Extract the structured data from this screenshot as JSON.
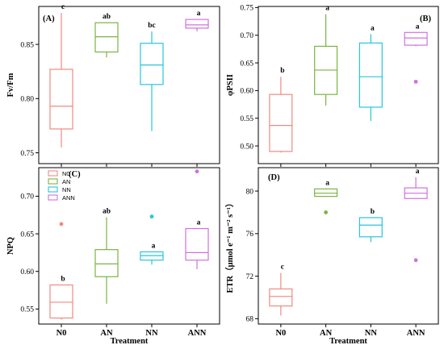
{
  "series_colors": {
    "N0": "#f08a80",
    "AN": "#7cb342",
    "NN": "#26c6da",
    "ANN": "#d070e0"
  },
  "chart_data": [
    {
      "type": "box",
      "panel_label": "(A)",
      "ylabel": "Fv/Fm",
      "xlabel": "",
      "categories": [
        "N0",
        "AN",
        "NN",
        "ANN"
      ],
      "show_xtick_labels": false,
      "ylim": [
        0.74,
        0.885
      ],
      "yticks": [
        "0.75",
        "0.80",
        "0.85"
      ],
      "ytick_values": [
        0.75,
        0.8,
        0.85
      ],
      "boxes": [
        {
          "category": "N0",
          "whisker_low": 0.755,
          "q1": 0.772,
          "median": 0.793,
          "q3": 0.827,
          "whisker_high": 0.879,
          "outliers": [],
          "sig": "c"
        },
        {
          "category": "AN",
          "whisker_low": 0.838,
          "q1": 0.843,
          "median": 0.857,
          "q3": 0.87,
          "whisker_high": 0.87,
          "outliers": [],
          "sig": "ab"
        },
        {
          "category": "NN",
          "whisker_low": 0.77,
          "q1": 0.813,
          "median": 0.831,
          "q3": 0.851,
          "whisker_high": 0.862,
          "outliers": [],
          "sig": "bc"
        },
        {
          "category": "ANN",
          "whisker_low": 0.862,
          "q1": 0.865,
          "median": 0.868,
          "q3": 0.873,
          "whisker_high": 0.873,
          "outliers": [],
          "sig": "a"
        }
      ]
    },
    {
      "type": "box",
      "panel_label": "(B)",
      "ylabel": "φPSII",
      "xlabel": "",
      "categories": [
        "N0",
        "AN",
        "NN",
        "ANN"
      ],
      "show_xtick_labels": false,
      "ylim": [
        0.468,
        0.752
      ],
      "yticks": [
        "0.50",
        "0.55",
        "0.60",
        "0.65",
        "0.70",
        "0.75"
      ],
      "ytick_values": [
        0.5,
        0.55,
        0.6,
        0.65,
        0.7,
        0.75
      ],
      "boxes": [
        {
          "category": "N0",
          "whisker_low": 0.488,
          "q1": 0.49,
          "median": 0.537,
          "q3": 0.593,
          "whisker_high": 0.625,
          "outliers": [],
          "sig": "b"
        },
        {
          "category": "AN",
          "whisker_low": 0.573,
          "q1": 0.593,
          "median": 0.637,
          "q3": 0.68,
          "whisker_high": 0.738,
          "outliers": [],
          "sig": "a"
        },
        {
          "category": "NN",
          "whisker_low": 0.545,
          "q1": 0.57,
          "median": 0.625,
          "q3": 0.686,
          "whisker_high": 0.702,
          "outliers": [],
          "sig": "a"
        },
        {
          "category": "ANN",
          "whisker_low": 0.68,
          "q1": 0.682,
          "median": 0.695,
          "q3": 0.705,
          "whisker_high": 0.705,
          "outliers": [
            0.616
          ],
          "sig": "a"
        }
      ]
    },
    {
      "type": "box",
      "panel_label": "(C)",
      "ylabel": "NPQ",
      "xlabel": "Treatment",
      "categories": [
        "N0",
        "AN",
        "NN",
        "ANN"
      ],
      "show_xtick_labels": true,
      "ylim": [
        0.53,
        0.738
      ],
      "yticks": [
        "0.55",
        "0.60",
        "0.65",
        "0.70"
      ],
      "ytick_values": [
        0.55,
        0.6,
        0.65,
        0.7
      ],
      "legend": {
        "entries": [
          "N0",
          "AN",
          "NN",
          "ANN"
        ],
        "placement": "top-left"
      },
      "boxes": [
        {
          "category": "N0",
          "whisker_low": 0.536,
          "q1": 0.538,
          "median": 0.559,
          "q3": 0.582,
          "whisker_high": 0.582,
          "outliers": [
            0.663
          ],
          "sig": "b"
        },
        {
          "category": "AN",
          "whisker_low": 0.557,
          "q1": 0.593,
          "median": 0.61,
          "q3": 0.629,
          "whisker_high": 0.672,
          "outliers": [],
          "sig": "ab"
        },
        {
          "category": "NN",
          "whisker_low": 0.609,
          "q1": 0.615,
          "median": 0.621,
          "q3": 0.626,
          "whisker_high": 0.626,
          "outliers": [
            0.673
          ],
          "sig": "a"
        },
        {
          "category": "ANN",
          "whisker_low": 0.603,
          "q1": 0.615,
          "median": 0.625,
          "q3": 0.657,
          "whisker_high": 0.657,
          "outliers": [
            0.733
          ],
          "sig": "a"
        }
      ]
    },
    {
      "type": "box",
      "panel_label": "(D)",
      "ylabel": "ETR（μmol e⁻¹ m⁻² s⁻¹）",
      "xlabel": "Treatment",
      "categories": [
        "N0",
        "AN",
        "NN",
        "ANN"
      ],
      "show_xtick_labels": true,
      "ylim": [
        67.5,
        82.2
      ],
      "yticks": [
        "68",
        "72",
        "76",
        "80"
      ],
      "ytick_values": [
        68,
        72,
        76,
        80
      ],
      "boxes": [
        {
          "category": "N0",
          "whisker_low": 68.3,
          "q1": 69.2,
          "median": 70.1,
          "q3": 70.8,
          "whisker_high": 72.3,
          "outliers": [],
          "sig": "c"
        },
        {
          "category": "AN",
          "whisker_low": 79.5,
          "q1": 79.5,
          "median": 79.8,
          "q3": 80.2,
          "whisker_high": 80.2,
          "outliers": [
            78.0
          ],
          "sig": "a"
        },
        {
          "category": "NN",
          "whisker_low": 75.2,
          "q1": 75.7,
          "median": 76.8,
          "q3": 77.5,
          "whisker_high": 77.5,
          "outliers": [],
          "sig": "b"
        },
        {
          "category": "ANN",
          "whisker_low": 79.3,
          "q1": 79.3,
          "median": 79.8,
          "q3": 80.3,
          "whisker_high": 81.3,
          "outliers": [
            73.5
          ],
          "sig": "a"
        }
      ]
    }
  ]
}
